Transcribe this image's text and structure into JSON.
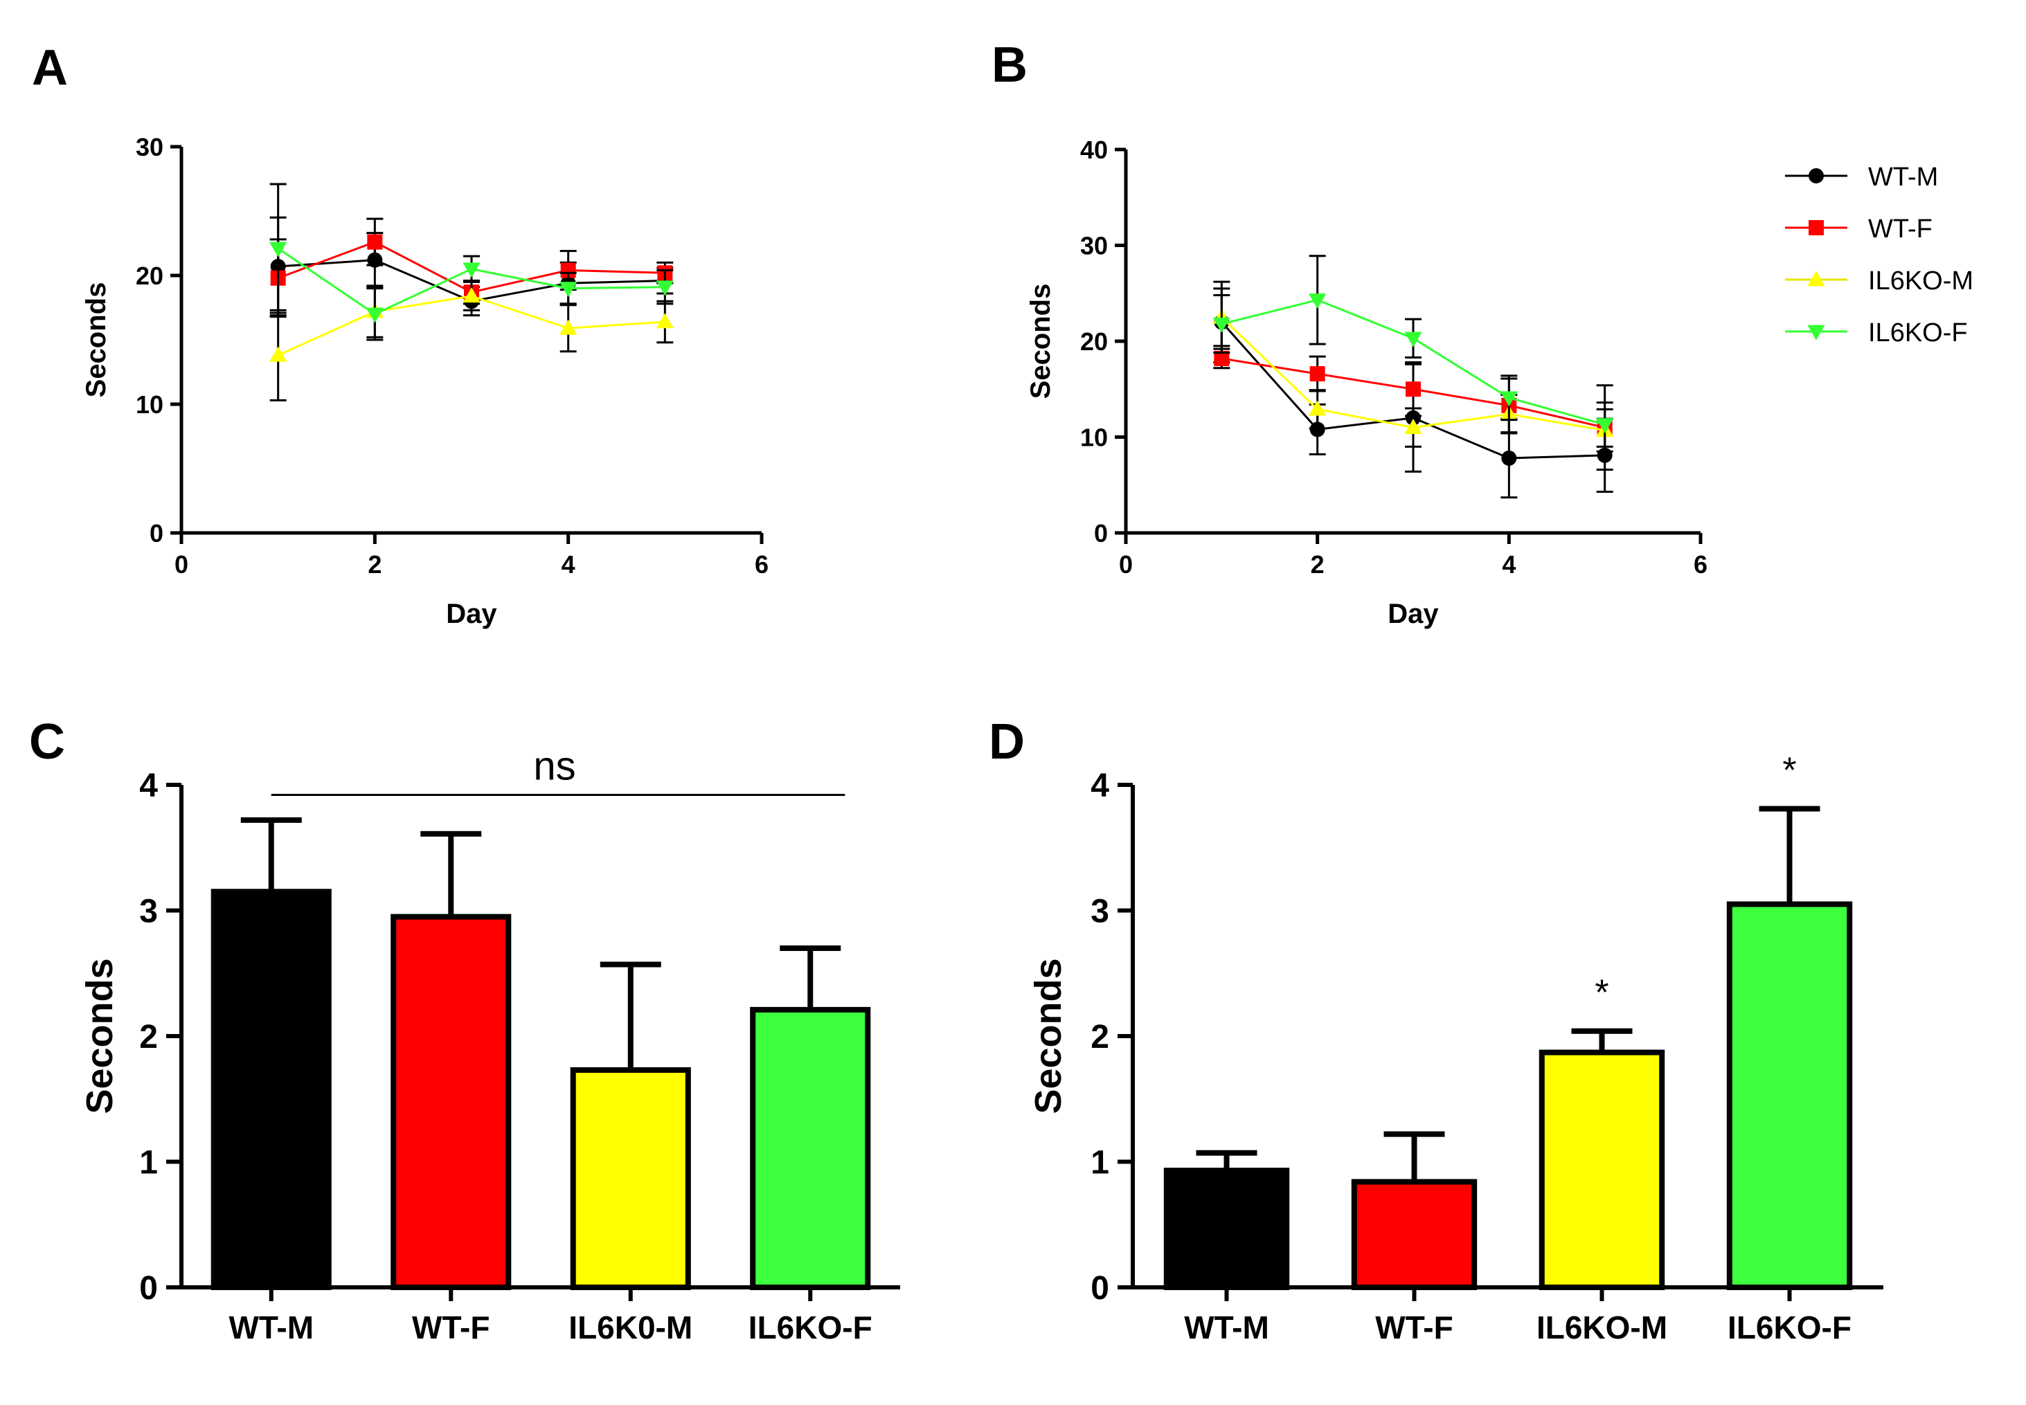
{
  "chart_data": [
    {
      "panel": "A",
      "type": "line",
      "xlabel": "Day",
      "ylabel": "Seconds",
      "xlim": [
        0,
        6
      ],
      "ylim": [
        0,
        30
      ],
      "xticks": [
        0,
        2,
        4,
        6
      ],
      "yticks": [
        0,
        10,
        20,
        30
      ],
      "x": [
        1,
        2,
        3,
        4,
        5
      ],
      "series": [
        {
          "name": "WT-M",
          "color": "#000000",
          "marker": "circle",
          "values": [
            20.7,
            21.2,
            18.0,
            19.4,
            19.6
          ],
          "errors": [
            3.8,
            2.1,
            1.1,
            1.6,
            1.0
          ]
        },
        {
          "name": "WT-F",
          "color": "#ff0000",
          "marker": "square",
          "values": [
            19.8,
            22.6,
            18.7,
            20.4,
            20.2
          ],
          "errors": [
            3.0,
            1.8,
            0.9,
            1.5,
            0.8
          ]
        },
        {
          "name": "IL6KO-M",
          "color": "#ffff00",
          "marker": "triangle-up",
          "values": [
            13.8,
            17.2,
            18.4,
            15.9,
            16.4
          ],
          "errors": [
            3.5,
            2.0,
            1.1,
            1.8,
            1.6
          ]
        },
        {
          "name": "IL6KO-F",
          "color": "#33ff33",
          "marker": "triangle-down",
          "values": [
            22.1,
            17.0,
            20.5,
            19.0,
            19.1
          ],
          "errors": [
            5.0,
            2.0,
            1.0,
            1.2,
            1.3
          ]
        }
      ]
    },
    {
      "panel": "B",
      "type": "line",
      "xlabel": "Day",
      "ylabel": "Seconds",
      "xlim": [
        0,
        6
      ],
      "ylim": [
        0,
        40
      ],
      "xticks": [
        0,
        2,
        4,
        6
      ],
      "yticks": [
        0,
        10,
        20,
        30,
        40
      ],
      "x": [
        1,
        2,
        3,
        4,
        5
      ],
      "legend": "top-right",
      "series": [
        {
          "name": "WT-M",
          "color": "#000000",
          "marker": "circle",
          "values": [
            22.0,
            10.8,
            12.0,
            7.8,
            8.1
          ],
          "errors": [
            4.2,
            2.6,
            5.6,
            4.1,
            3.8
          ]
        },
        {
          "name": "WT-F",
          "color": "#ff0000",
          "marker": "square",
          "values": [
            18.2,
            16.6,
            15.0,
            13.3,
            11.0
          ],
          "errors": [
            1.0,
            1.8,
            2.8,
            2.8,
            4.4
          ]
        },
        {
          "name": "IL6KO-M",
          "color": "#ffff00",
          "marker": "triangle-up",
          "values": [
            22.5,
            12.9,
            11.0,
            12.4,
            10.7
          ],
          "errors": [
            3.0,
            2.0,
            2.0,
            2.0,
            2.2
          ]
        },
        {
          "name": "IL6KO-F",
          "color": "#33ff33",
          "marker": "triangle-down",
          "values": [
            21.8,
            24.3,
            20.3,
            14.1,
            11.3
          ],
          "errors": [
            3.0,
            4.6,
            2.0,
            2.3,
            2.3
          ]
        }
      ]
    },
    {
      "panel": "C",
      "type": "bar",
      "ylabel": "Seconds",
      "ylim": [
        0,
        4
      ],
      "yticks": [
        0,
        1,
        2,
        3,
        4
      ],
      "categories": [
        "WT-M",
        "WT-F",
        "IL6K0-M",
        "IL6KO-F"
      ],
      "values": [
        3.15,
        2.95,
        1.73,
        2.21
      ],
      "errors": [
        0.57,
        0.66,
        0.84,
        0.49
      ],
      "colors": [
        "#000000",
        "#ff0000",
        "#ffff00",
        "#3dff3d"
      ],
      "annotation": "ns"
    },
    {
      "panel": "D",
      "type": "bar",
      "ylabel": "Seconds",
      "ylim": [
        0,
        4
      ],
      "yticks": [
        0,
        1,
        2,
        3,
        4
      ],
      "categories": [
        "WT-M",
        "WT-F",
        "IL6KO-M",
        "IL6KO-F"
      ],
      "values": [
        0.93,
        0.84,
        1.87,
        3.05
      ],
      "errors": [
        0.14,
        0.38,
        0.17,
        0.76
      ],
      "colors": [
        "#000000",
        "#ff0000",
        "#ffff00",
        "#3dff3d"
      ],
      "significance": [
        "",
        "",
        "*",
        "*"
      ]
    }
  ]
}
